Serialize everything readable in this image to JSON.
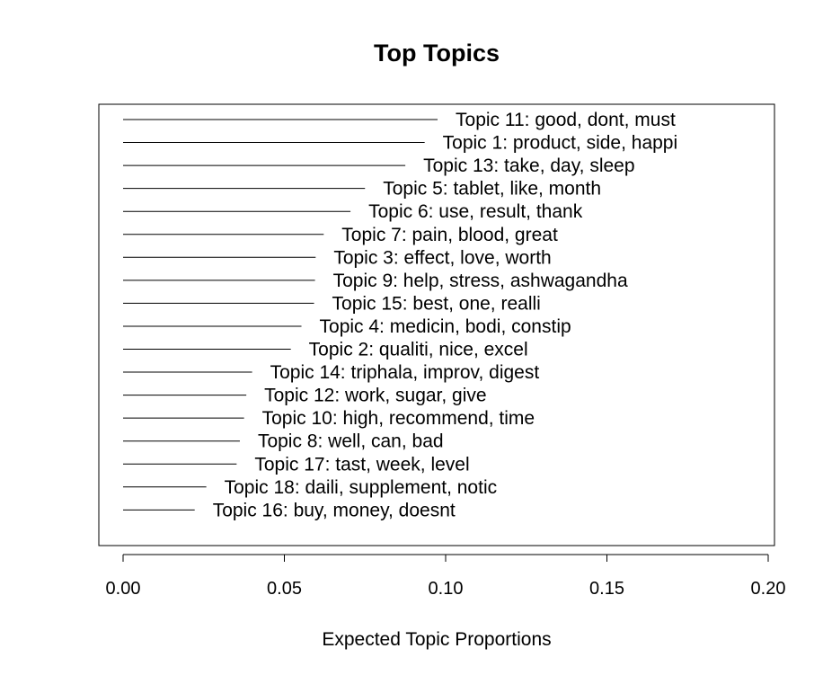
{
  "chart_data": {
    "type": "bar",
    "orientation": "horizontal",
    "title": "Top Topics",
    "xlabel": "Expected Topic Proportions",
    "ylabel": "",
    "xlim": [
      0,
      0.2
    ],
    "x_ticks": [
      "0.00",
      "0.05",
      "0.10",
      "0.15",
      "0.20"
    ],
    "x_tick_values": [
      0,
      0.05,
      0.1,
      0.15,
      0.2
    ],
    "grid": false,
    "categories": [
      "Topic 11: good, dont, must",
      "Topic 1: product, side, happi",
      "Topic 13: take, day, sleep",
      "Topic 5: tablet, like, month",
      "Topic 6: use, result, thank",
      "Topic 7: pain, blood, great",
      "Topic 3: effect, love, worth",
      "Topic 9: help, stress, ashwagandha",
      "Topic 15: best, one, realli",
      "Topic 4: medicin, bodi, constip",
      "Topic 2: qualiti, nice, excel",
      "Topic 14: triphala, improv, digest",
      "Topic 12: work, sugar, give",
      "Topic 10: high, recommend, time",
      "Topic 8: well, can, bad",
      "Topic 17: tast, week, level",
      "Topic 18: daili, supplement, notic",
      "Topic 16: buy, money, doesnt"
    ],
    "values": [
      0.0975,
      0.0935,
      0.0875,
      0.075,
      0.0705,
      0.0622,
      0.0597,
      0.0595,
      0.0592,
      0.0553,
      0.052,
      0.04,
      0.0382,
      0.0375,
      0.0362,
      0.0352,
      0.0258,
      0.0222
    ],
    "line_color": "#000000"
  }
}
